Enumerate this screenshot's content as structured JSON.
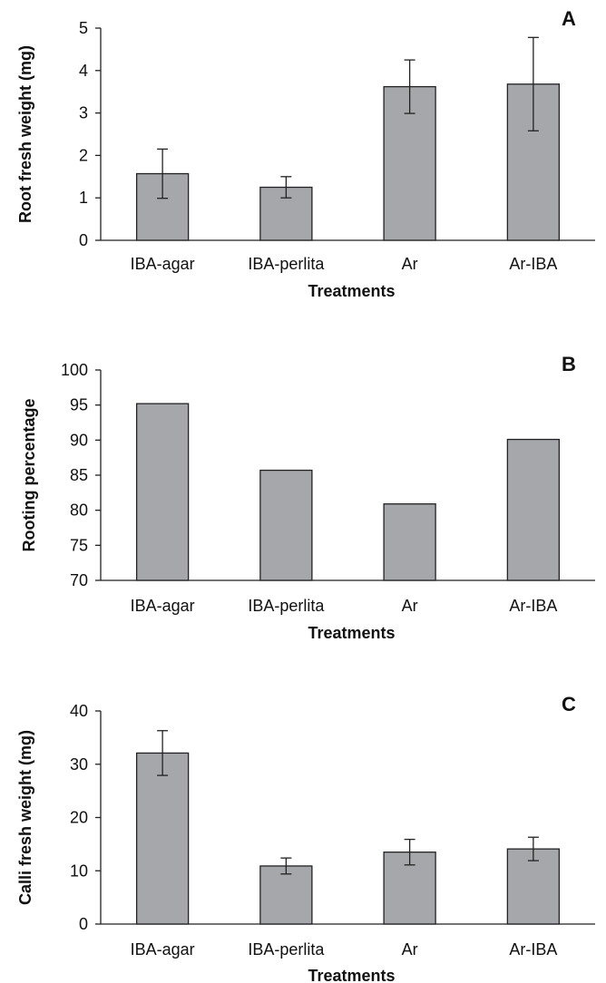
{
  "colors": {
    "bar_fill": "#a6a7ab",
    "bar_stroke": "#222222",
    "axis": "#222222",
    "text": "#111111"
  },
  "chart_data": [
    {
      "type": "bar",
      "panel_label": "A",
      "categories": [
        "IBA-agar",
        "IBA-perlita",
        "Ar",
        "Ar-IBA"
      ],
      "values": [
        1.57,
        1.25,
        3.62,
        3.68
      ],
      "errors": [
        0.58,
        0.25,
        0.63,
        1.1
      ],
      "xlabel": "Treatments",
      "ylabel": "Root fresh weight (mg)",
      "ylim": [
        0,
        5
      ],
      "yticks": [
        0,
        1,
        2,
        3,
        4,
        5
      ],
      "grid": false
    },
    {
      "type": "bar",
      "panel_label": "B",
      "categories": [
        "IBA-agar",
        "IBA-perlita",
        "Ar",
        "Ar-IBA"
      ],
      "values": [
        95.2,
        85.7,
        80.9,
        90.1
      ],
      "xlabel": "Treatments",
      "ylabel": "Rooting percentage",
      "ylim": [
        70,
        100
      ],
      "yticks": [
        70,
        75,
        80,
        85,
        90,
        95,
        100
      ],
      "grid": false
    },
    {
      "type": "bar",
      "panel_label": "C",
      "categories": [
        "IBA-agar",
        "IBA-perlita",
        "Ar",
        "Ar-IBA"
      ],
      "values": [
        32.1,
        10.9,
        13.5,
        14.1
      ],
      "errors": [
        4.2,
        1.5,
        2.4,
        2.2
      ],
      "xlabel": "Treatments",
      "ylabel": "Calli fresh weight (mg)",
      "ylim": [
        0,
        40
      ],
      "yticks": [
        0,
        10,
        20,
        30,
        40
      ],
      "grid": false
    }
  ]
}
